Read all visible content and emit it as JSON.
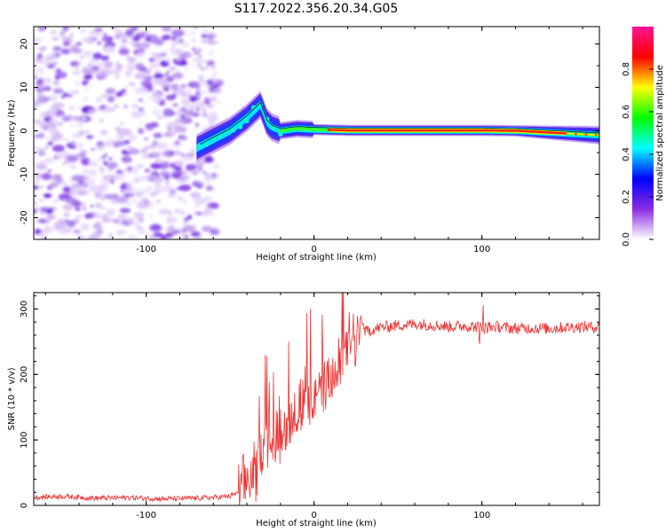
{
  "figure_title": "S117.2022.356.20.34.G05",
  "chart_data": [
    {
      "type": "heatmap",
      "title": "",
      "xlabel": "Height of straight line (km)",
      "ylabel": "Frequency (Hz)",
      "xlim": [
        -167,
        170
      ],
      "ylim": [
        -25,
        24
      ],
      "xticks": [
        -100,
        0,
        100
      ],
      "yticks": [
        -20,
        -10,
        0,
        10,
        20
      ],
      "xtick_labels": [
        "-100",
        "0",
        "100"
      ],
      "ytick_labels": [
        "-20",
        "-10",
        "0",
        "10",
        "20"
      ],
      "grid": false,
      "ridge": {
        "x": [
          -70,
          -60,
          -50,
          -40,
          -32,
          -28,
          -25,
          -20,
          -10,
          0,
          10,
          20,
          40,
          60,
          80,
          100,
          120,
          140,
          160,
          170
        ],
        "y": [
          -4,
          -2,
          0,
          3,
          6,
          2,
          0.8,
          0,
          0.5,
          0.3,
          0.2,
          0.1,
          0.1,
          0.1,
          0.1,
          0.1,
          0,
          -0.4,
          -0.8,
          -1
        ]
      },
      "colorbar": {
        "label": "Normalized spectral amplitude",
        "range": [
          0,
          1
        ],
        "ticks": [
          0.0,
          0.2,
          0.4,
          0.6,
          0.8
        ],
        "tick_labels": [
          "0.0",
          "0.2",
          "0.4",
          "0.6",
          "0.8"
        ],
        "colors": [
          "#ffffff",
          "#8a2be2",
          "#0000ff",
          "#00ffff",
          "#00ff00",
          "#ffff00",
          "#ff0000",
          "#ff1493"
        ]
      }
    },
    {
      "type": "line",
      "title": "",
      "xlabel": "Height of straight line (km)",
      "ylabel": "SNR (10 * v/v)",
      "xlim": [
        -167,
        170
      ],
      "ylim": [
        0,
        325
      ],
      "xticks": [
        -100,
        0,
        100
      ],
      "yticks": [
        0,
        100,
        200,
        300
      ],
      "xtick_labels": [
        "-100",
        "0",
        "100"
      ],
      "ytick_labels": [
        "0",
        "100",
        "200",
        "300"
      ],
      "grid": false,
      "series": [
        {
          "color": "#ee3333",
          "x": [
            -167,
            -150,
            -130,
            -110,
            -90,
            -70,
            -60,
            -50,
            -45,
            -40,
            -35,
            -30,
            -25,
            -20,
            -15,
            -10,
            -5,
            0,
            5,
            10,
            15,
            20,
            25,
            30,
            40,
            50,
            60,
            70,
            80,
            90,
            100,
            110,
            120,
            130,
            140,
            150,
            160,
            170
          ],
          "y": [
            12,
            14,
            11,
            12,
            10,
            11,
            12,
            14,
            20,
            35,
            55,
            90,
            120,
            115,
            130,
            150,
            160,
            165,
            180,
            190,
            205,
            240,
            258,
            265,
            272,
            275,
            277,
            276,
            273,
            274,
            272,
            273,
            270,
            271,
            270,
            272,
            273,
            272
          ]
        }
      ]
    }
  ]
}
